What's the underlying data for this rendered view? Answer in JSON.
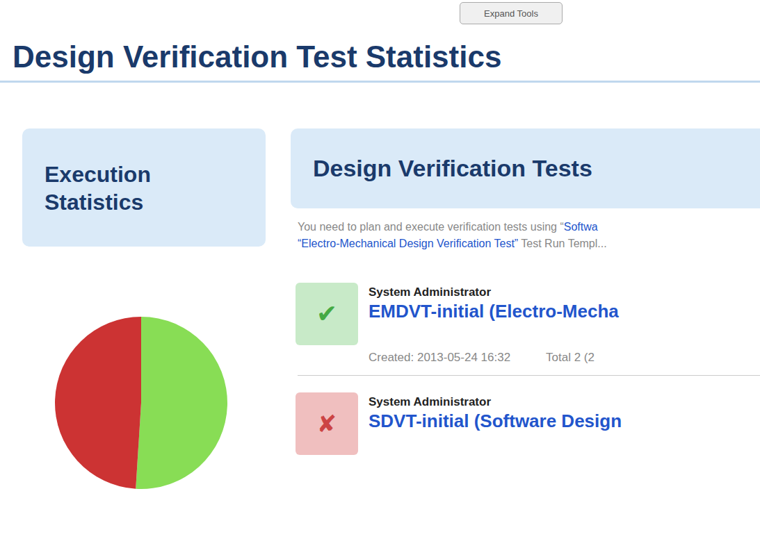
{
  "chart_data": {
    "type": "pie",
    "title": "Design Verification Test Statistics",
    "values": [
      0.51,
      0.49
    ],
    "colors": [
      "#88dd55",
      "#cc3333"
    ],
    "annotations": [
      "Expand Tools",
      "Execution",
      "Statistics",
      "Design Verification Tests",
      "You need to plan and execute verification tests using “",
      "Softwa",
      "“Electro-Mechanical Design Verification Test”",
      " Test Run Templ...",
      "✔",
      "System Administrator",
      "EMDVT-initial (Electro-Mecha",
      "Created: 2013-05-24 16:32",
      "Total 2 (2",
      "✘",
      "System Administrator",
      "SDVT-initial (Software Design"
    ]
  }
}
